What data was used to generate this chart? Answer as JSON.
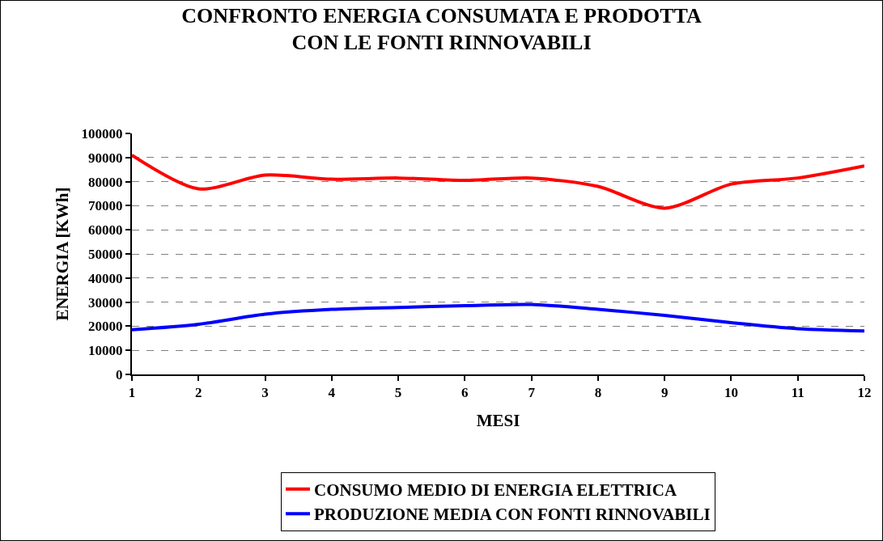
{
  "chart_data": {
    "type": "line",
    "title": "CONFRONTO ENERGIA CONSUMATA E PRODOTTA\nCON LE FONTI RINNOVABILI",
    "xlabel": "MESI",
    "ylabel": "ENERGIA [KWh]",
    "x": [
      1,
      2,
      3,
      4,
      5,
      6,
      7,
      8,
      9,
      10,
      11,
      12
    ],
    "series": [
      {
        "name": "CONSUMO MEDIO DI ENERGIA ELETTRICA",
        "color": "#ff0000",
        "values": [
          91000,
          77000,
          82700,
          81000,
          81500,
          80500,
          81500,
          78000,
          69000,
          79000,
          81500,
          86500
        ]
      },
      {
        "name": "PRODUZIONE MEDIA CON FONTI RINNOVABILI",
        "color": "#0000ff",
        "values": [
          18500,
          20800,
          25000,
          27000,
          27800,
          28500,
          29000,
          27000,
          24500,
          21500,
          19000,
          18000
        ]
      }
    ],
    "xlim": [
      1,
      12
    ],
    "xticks": [
      1,
      2,
      3,
      4,
      5,
      6,
      7,
      8,
      9,
      10,
      11,
      12
    ],
    "ylim": [
      0,
      100000
    ],
    "yticks": [
      0,
      10000,
      20000,
      30000,
      40000,
      50000,
      60000,
      70000,
      80000,
      90000,
      100000
    ],
    "grid": "y",
    "legend": "bottom",
    "marker": "none",
    "line_style": "solid"
  }
}
